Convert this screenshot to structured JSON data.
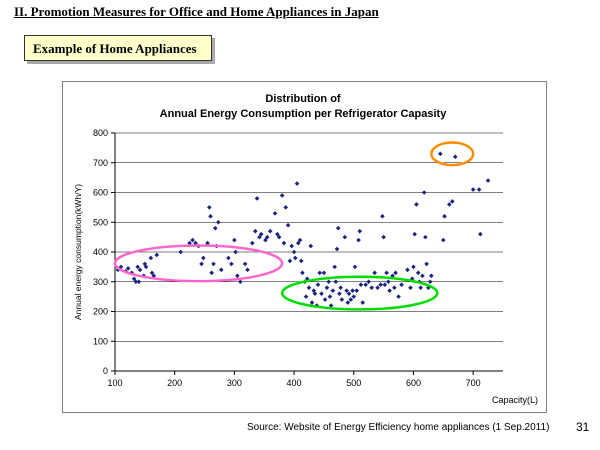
{
  "slide": {
    "title": "II. Promotion Measures for Office and Home Appliances in Japan",
    "example_label": "Example of Home Appliances",
    "source": "Source: Website of Energy Efficiency home appliances (1 Sep.2011)",
    "page_number": "31"
  },
  "chart_data": {
    "type": "scatter",
    "title_line1": "Distribution of",
    "title_line2": "Annual Energy Consumption per Refrigerator Capasity",
    "xlabel": "Capacity(L)",
    "ylabel": "Annual energy consumption(kWh/Y)",
    "xlim": [
      100,
      750
    ],
    "ylim": [
      0,
      800
    ],
    "xticks": [
      100,
      200,
      300,
      400,
      500,
      600,
      700
    ],
    "yticks": [
      0,
      100,
      200,
      300,
      400,
      500,
      600,
      700,
      800
    ],
    "grid": "horizontal",
    "marker_color": "#1a237e",
    "points": [
      [
        105,
        340
      ],
      [
        110,
        350
      ],
      [
        118,
        335
      ],
      [
        122,
        345
      ],
      [
        128,
        330
      ],
      [
        132,
        310
      ],
      [
        135,
        300
      ],
      [
        138,
        350
      ],
      [
        140,
        300
      ],
      [
        142,
        340
      ],
      [
        148,
        320
      ],
      [
        150,
        360
      ],
      [
        152,
        350
      ],
      [
        160,
        380
      ],
      [
        162,
        330
      ],
      [
        165,
        320
      ],
      [
        170,
        390
      ],
      [
        210,
        400
      ],
      [
        225,
        430
      ],
      [
        230,
        440
      ],
      [
        235,
        430
      ],
      [
        240,
        420
      ],
      [
        245,
        360
      ],
      [
        248,
        380
      ],
      [
        255,
        430
      ],
      [
        258,
        550
      ],
      [
        260,
        520
      ],
      [
        262,
        330
      ],
      [
        265,
        360
      ],
      [
        268,
        480
      ],
      [
        270,
        420
      ],
      [
        273,
        500
      ],
      [
        278,
        340
      ],
      [
        290,
        380
      ],
      [
        295,
        360
      ],
      [
        300,
        440
      ],
      [
        302,
        400
      ],
      [
        305,
        320
      ],
      [
        310,
        300
      ],
      [
        318,
        360
      ],
      [
        322,
        340
      ],
      [
        330,
        430
      ],
      [
        335,
        470
      ],
      [
        338,
        580
      ],
      [
        342,
        450
      ],
      [
        345,
        460
      ],
      [
        352,
        440
      ],
      [
        355,
        450
      ],
      [
        360,
        470
      ],
      [
        368,
        530
      ],
      [
        372,
        460
      ],
      [
        375,
        450
      ],
      [
        380,
        590
      ],
      [
        383,
        430
      ],
      [
        386,
        550
      ],
      [
        390,
        490
      ],
      [
        393,
        370
      ],
      [
        396,
        420
      ],
      [
        400,
        400
      ],
      [
        402,
        380
      ],
      [
        405,
        630
      ],
      [
        407,
        430
      ],
      [
        410,
        440
      ],
      [
        412,
        370
      ],
      [
        414,
        330
      ],
      [
        418,
        300
      ],
      [
        420,
        250
      ],
      [
        422,
        310
      ],
      [
        425,
        280
      ],
      [
        428,
        420
      ],
      [
        430,
        230
      ],
      [
        433,
        270
      ],
      [
        435,
        260
      ],
      [
        438,
        220
      ],
      [
        440,
        290
      ],
      [
        443,
        330
      ],
      [
        446,
        260
      ],
      [
        450,
        330
      ],
      [
        452,
        240
      ],
      [
        455,
        280
      ],
      [
        458,
        300
      ],
      [
        460,
        250
      ],
      [
        462,
        220
      ],
      [
        465,
        270
      ],
      [
        468,
        350
      ],
      [
        470,
        300
      ],
      [
        472,
        410
      ],
      [
        474,
        480
      ],
      [
        476,
        260
      ],
      [
        478,
        280
      ],
      [
        480,
        240
      ],
      [
        485,
        450
      ],
      [
        488,
        270
      ],
      [
        490,
        230
      ],
      [
        492,
        260
      ],
      [
        495,
        240
      ],
      [
        498,
        270
      ],
      [
        500,
        250
      ],
      [
        502,
        350
      ],
      [
        505,
        270
      ],
      [
        508,
        440
      ],
      [
        510,
        470
      ],
      [
        512,
        290
      ],
      [
        515,
        230
      ],
      [
        520,
        290
      ],
      [
        525,
        300
      ],
      [
        530,
        280
      ],
      [
        535,
        330
      ],
      [
        540,
        280
      ],
      [
        545,
        290
      ],
      [
        548,
        520
      ],
      [
        550,
        450
      ],
      [
        552,
        290
      ],
      [
        555,
        330
      ],
      [
        558,
        300
      ],
      [
        560,
        270
      ],
      [
        565,
        320
      ],
      [
        568,
        280
      ],
      [
        570,
        330
      ],
      [
        575,
        250
      ],
      [
        580,
        290
      ],
      [
        590,
        340
      ],
      [
        595,
        280
      ],
      [
        598,
        310
      ],
      [
        600,
        350
      ],
      [
        602,
        460
      ],
      [
        605,
        560
      ],
      [
        608,
        330
      ],
      [
        610,
        300
      ],
      [
        612,
        280
      ],
      [
        615,
        320
      ],
      [
        618,
        600
      ],
      [
        620,
        450
      ],
      [
        622,
        360
      ],
      [
        625,
        280
      ],
      [
        628,
        300
      ],
      [
        630,
        320
      ],
      [
        645,
        730
      ],
      [
        650,
        440
      ],
      [
        652,
        520
      ],
      [
        660,
        560
      ],
      [
        665,
        570
      ],
      [
        670,
        720
      ],
      [
        700,
        610
      ],
      [
        710,
        610
      ],
      [
        712,
        460
      ],
      [
        725,
        640
      ]
    ],
    "highlights": [
      {
        "color": "#ff66cc",
        "cx": 240,
        "cy": 362,
        "rx": 140,
        "ry": 60
      },
      {
        "color": "#00dd00",
        "cx": 510,
        "cy": 262,
        "rx": 130,
        "ry": 55
      },
      {
        "color": "#ff8c00",
        "cx": 665,
        "cy": 730,
        "rx": 35,
        "ry": 38
      }
    ]
  }
}
